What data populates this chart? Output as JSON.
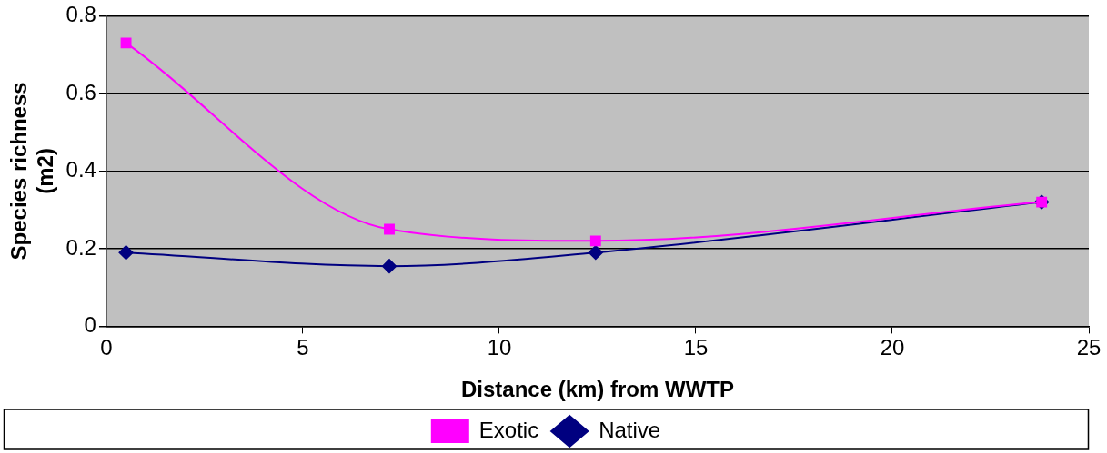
{
  "chart_data": {
    "type": "line",
    "xlabel": "Distance (km) from WWTP",
    "ylabel": "Species richness (m2)",
    "xlim": [
      0,
      25
    ],
    "xticks": [
      0,
      5,
      10,
      15,
      20,
      25
    ],
    "ylim": [
      0,
      0.8
    ],
    "yticks": [
      0,
      0.2,
      0.4,
      0.6,
      0.8
    ],
    "grid": "y",
    "legend": "bottom",
    "x": [
      0.5,
      7.2,
      12.45,
      23.8
    ],
    "series": [
      {
        "name": "Native",
        "color": "#000080",
        "marker": "diamond",
        "values": [
          0.19,
          0.155,
          0.19,
          0.32
        ]
      },
      {
        "name": "Exotic",
        "color": "#ff00ff",
        "marker": "square",
        "values": [
          0.73,
          0.25,
          0.22,
          0.32
        ]
      }
    ]
  }
}
